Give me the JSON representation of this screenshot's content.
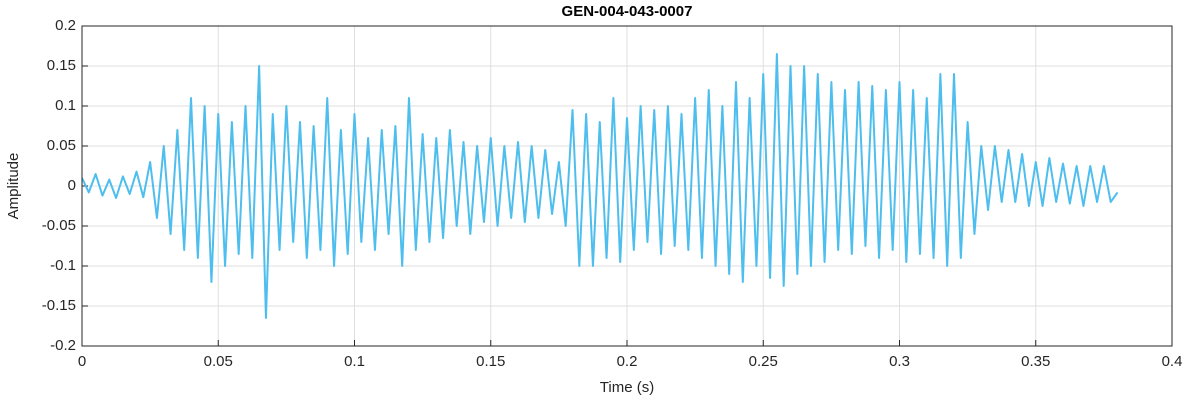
{
  "chart_data": {
    "type": "line",
    "title": "GEN-004-043-0007",
    "xlabel": "Time (s)",
    "ylabel": "Amplitude",
    "color": "#4dbeee",
    "grid": true,
    "xlim": [
      0,
      0.4
    ],
    "xticks": [
      0,
      0.05,
      0.1,
      0.15,
      0.2,
      0.25,
      0.3,
      0.35,
      0.4
    ],
    "ylim": [
      -0.2,
      0.2
    ],
    "yticks": [
      -0.2,
      -0.15,
      -0.1,
      -0.05,
      0,
      0.05,
      0.1,
      0.15,
      0.2
    ],
    "x": [
      0,
      0.0025,
      0.005,
      0.0075,
      0.01,
      0.0125,
      0.015,
      0.0175,
      0.02,
      0.0225,
      0.025,
      0.0275,
      0.03,
      0.0325,
      0.035,
      0.0375,
      0.04,
      0.0425,
      0.045,
      0.0475,
      0.05,
      0.0525,
      0.055,
      0.0575,
      0.06,
      0.0625,
      0.065,
      0.0675,
      0.07,
      0.0725,
      0.075,
      0.0775,
      0.08,
      0.0825,
      0.085,
      0.0875,
      0.09,
      0.0925,
      0.095,
      0.0975,
      0.1,
      0.1025,
      0.105,
      0.1075,
      0.11,
      0.1125,
      0.115,
      0.1175,
      0.12,
      0.1225,
      0.125,
      0.1275,
      0.13,
      0.1325,
      0.135,
      0.1375,
      0.14,
      0.1425,
      0.145,
      0.1475,
      0.15,
      0.1525,
      0.155,
      0.1575,
      0.16,
      0.1625,
      0.165,
      0.1675,
      0.17,
      0.1725,
      0.175,
      0.1775,
      0.18,
      0.1825,
      0.185,
      0.1875,
      0.19,
      0.1925,
      0.195,
      0.1975,
      0.2,
      0.2025,
      0.205,
      0.2075,
      0.21,
      0.2125,
      0.215,
      0.2175,
      0.22,
      0.2225,
      0.225,
      0.2275,
      0.23,
      0.2325,
      0.235,
      0.2375,
      0.24,
      0.2425,
      0.245,
      0.2475,
      0.25,
      0.2525,
      0.255,
      0.2575,
      0.26,
      0.2625,
      0.265,
      0.2675,
      0.27,
      0.2725,
      0.275,
      0.2775,
      0.28,
      0.2825,
      0.285,
      0.2875,
      0.29,
      0.2925,
      0.295,
      0.2975,
      0.3,
      0.3025,
      0.305,
      0.3075,
      0.31,
      0.3125,
      0.315,
      0.3175,
      0.32,
      0.3225,
      0.325,
      0.3275,
      0.33,
      0.3325,
      0.335,
      0.3375,
      0.34,
      0.3425,
      0.345,
      0.3475,
      0.35,
      0.3525,
      0.355,
      0.3575,
      0.36,
      0.3625,
      0.365,
      0.3675,
      0.37,
      0.3725,
      0.375,
      0.3775,
      0.38
    ],
    "values": [
      0.01,
      -0.008,
      0.015,
      -0.012,
      0.008,
      -0.015,
      0.012,
      -0.01,
      0.018,
      -0.014,
      0.03,
      -0.04,
      0.05,
      -0.06,
      0.07,
      -0.08,
      0.11,
      -0.09,
      0.1,
      -0.12,
      0.09,
      -0.1,
      0.08,
      -0.085,
      0.1,
      -0.09,
      0.15,
      -0.165,
      0.09,
      -0.08,
      0.1,
      -0.07,
      0.08,
      -0.09,
      0.075,
      -0.08,
      0.11,
      -0.1,
      0.07,
      -0.085,
      0.09,
      -0.07,
      0.06,
      -0.08,
      0.07,
      -0.06,
      0.075,
      -0.1,
      0.11,
      -0.08,
      0.065,
      -0.07,
      0.06,
      -0.065,
      0.07,
      -0.05,
      0.055,
      -0.06,
      0.05,
      -0.045,
      0.06,
      -0.05,
      0.05,
      -0.04,
      0.055,
      -0.045,
      0.05,
      -0.04,
      0.045,
      -0.035,
      0.03,
      -0.05,
      0.095,
      -0.1,
      0.09,
      -0.1,
      0.08,
      -0.09,
      0.11,
      -0.095,
      0.085,
      -0.08,
      0.1,
      -0.07,
      0.095,
      -0.085,
      0.1,
      -0.075,
      0.09,
      -0.08,
      0.11,
      -0.09,
      0.12,
      -0.1,
      0.1,
      -0.11,
      0.13,
      -0.12,
      0.11,
      -0.1,
      0.14,
      -0.115,
      0.165,
      -0.125,
      0.15,
      -0.11,
      0.15,
      -0.1,
      0.14,
      -0.095,
      0.13,
      -0.08,
      0.12,
      -0.085,
      0.13,
      -0.075,
      0.125,
      -0.09,
      0.12,
      -0.08,
      0.13,
      -0.095,
      0.12,
      -0.085,
      0.11,
      -0.09,
      0.14,
      -0.1,
      0.14,
      -0.09,
      0.08,
      -0.06,
      0.05,
      -0.03,
      0.05,
      -0.02,
      0.045,
      -0.02,
      0.04,
      -0.025,
      0.03,
      -0.025,
      0.035,
      -0.02,
      0.028,
      -0.022,
      0.025,
      -0.025,
      0.025,
      -0.02,
      0.025,
      -0.02,
      -0.008
    ]
  }
}
